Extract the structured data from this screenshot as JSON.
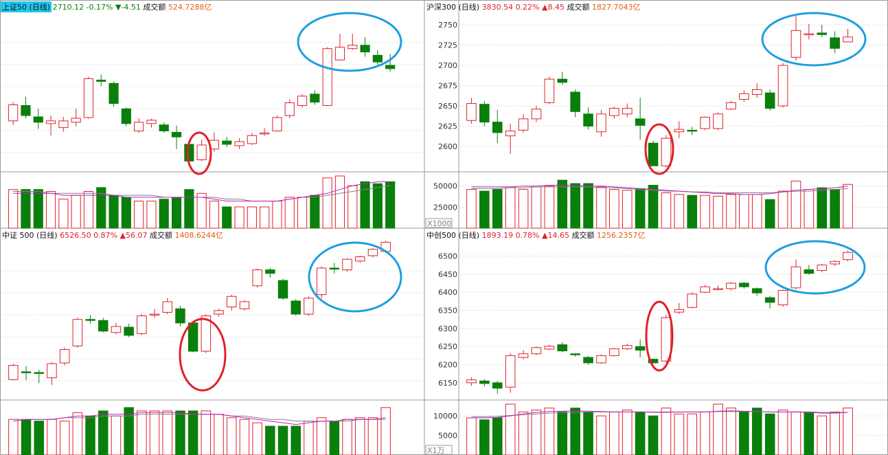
{
  "colors": {
    "up": "#e0202a",
    "down": "#0b7f0b",
    "frame": "#9a9a9a",
    "grid": "#c8c8c8",
    "ma1": "#c020c0",
    "ma2": "#808080",
    "highlight_bg": "#1ec8f0",
    "circle_blue": "#1d9ee0",
    "circle_red": "#e0202a",
    "vol_label": "#808080",
    "price_axis_label": "#333333"
  },
  "chart_data": [
    {
      "id": "sz50",
      "type": "candlestick",
      "header": {
        "name": "上证50 (日线)",
        "name_highlight": true,
        "price": "2710.12",
        "pct": "-0.17%",
        "change": "▼-4.51",
        "direction": "down",
        "turnover_label": "成交额",
        "turnover_value": "524.7288亿"
      },
      "price_ticks": [],
      "volume_ticks": [],
      "volume_unit": "",
      "ylim": [
        2560,
        2790
      ],
      "vol_max": 27,
      "candles": [
        [
          2632,
          2656,
          2660,
          2626
        ],
        [
          2655,
          2640,
          2668,
          2636
        ],
        [
          2638,
          2630,
          2650,
          2620
        ],
        [
          2628,
          2632,
          2640,
          2610
        ],
        [
          2622,
          2632,
          2638,
          2616
        ],
        [
          2630,
          2636,
          2650,
          2624
        ],
        [
          2637,
          2695,
          2698,
          2635
        ],
        [
          2693,
          2691,
          2701,
          2684
        ],
        [
          2688,
          2658,
          2691,
          2653
        ],
        [
          2650,
          2628,
          2652,
          2624
        ],
        [
          2617,
          2630,
          2636,
          2614
        ],
        [
          2628,
          2633,
          2635,
          2622
        ],
        [
          2626,
          2617,
          2630,
          2614
        ],
        [
          2615,
          2608,
          2625,
          2590
        ],
        [
          2597,
          2572,
          2597,
          2568
        ],
        [
          2574,
          2596,
          2604,
          2572
        ],
        [
          2590,
          2603,
          2615,
          2586
        ],
        [
          2602,
          2597,
          2608,
          2593
        ],
        [
          2595,
          2601,
          2606,
          2590
        ],
        [
          2598,
          2610,
          2614,
          2596
        ],
        [
          2614,
          2614,
          2621,
          2610
        ],
        [
          2617,
          2637,
          2640,
          2616
        ],
        [
          2640,
          2659,
          2664,
          2636
        ],
        [
          2655,
          2669,
          2672,
          2652
        ],
        [
          2672,
          2660,
          2678,
          2656
        ],
        [
          2655,
          2740,
          2742,
          2654
        ],
        [
          2723,
          2742,
          2762,
          2723
        ],
        [
          2740,
          2745,
          2762,
          2738
        ],
        [
          2745,
          2735,
          2757,
          2728
        ],
        [
          2730,
          2720,
          2738,
          2716
        ],
        [
          2715,
          2710,
          2732,
          2706
        ]
      ],
      "volumes": [
        20,
        20,
        20,
        19,
        15,
        17,
        19,
        21,
        17,
        16,
        14,
        14,
        15,
        16,
        20,
        18,
        14,
        11,
        11,
        11,
        11,
        14,
        16,
        16,
        17,
        26,
        27,
        22,
        24,
        23,
        24
      ],
      "ma_line": [
        18,
        18,
        18,
        18,
        17,
        17,
        17,
        17,
        17,
        16,
        16,
        16,
        16,
        16,
        16,
        16,
        15,
        14,
        14,
        14,
        14,
        14,
        15,
        16,
        17,
        18,
        20,
        22,
        23,
        24,
        24
      ],
      "ma_line2": [
        19,
        19,
        19,
        18,
        18,
        18,
        18,
        18,
        17,
        17,
        17,
        17,
        16,
        16,
        16,
        16,
        16,
        15,
        15,
        14,
        14,
        14,
        15,
        16,
        16,
        17,
        18,
        19,
        20,
        21,
        22
      ]
    },
    {
      "id": "hs300",
      "type": "candlestick",
      "header": {
        "name": "沪深300 (日线)",
        "name_highlight": false,
        "price": "3830.54",
        "pct": "0.22%",
        "change": "▲8.45",
        "direction": "up",
        "turnover_label": "成交额",
        "turnover_value": "1827.7043亿"
      },
      "price_ticks": [
        2600,
        2625,
        2650,
        2675,
        2700,
        2725,
        2750
      ],
      "volume_ticks": [
        25000,
        50000
      ],
      "volume_unit": "X1000",
      "ylim": [
        2572,
        2762
      ],
      "vol_max": 62000,
      "candles": [
        [
          2632,
          2653,
          2660,
          2628
        ],
        [
          2652,
          2630,
          2656,
          2625
        ],
        [
          2630,
          2617,
          2645,
          2604
        ],
        [
          2613,
          2619,
          2628,
          2591
        ],
        [
          2620,
          2634,
          2640,
          2617
        ],
        [
          2634,
          2646,
          2650,
          2630
        ],
        [
          2654,
          2683,
          2686,
          2652
        ],
        [
          2683,
          2679,
          2692,
          2676
        ],
        [
          2667,
          2643,
          2670,
          2636
        ],
        [
          2640,
          2625,
          2648,
          2621
        ],
        [
          2618,
          2640,
          2645,
          2612
        ],
        [
          2638,
          2647,
          2649,
          2634
        ],
        [
          2640,
          2647,
          2653,
          2636
        ],
        [
          2634,
          2626,
          2660,
          2608
        ],
        [
          2604,
          2576,
          2607,
          2576
        ],
        [
          2576,
          2610,
          2614,
          2574
        ],
        [
          2618,
          2621,
          2631,
          2610
        ],
        [
          2620,
          2619,
          2624,
          2614
        ],
        [
          2622,
          2636,
          2637,
          2620
        ],
        [
          2622,
          2640,
          2642,
          2620
        ],
        [
          2646,
          2654,
          2656,
          2645
        ],
        [
          2658,
          2665,
          2669,
          2655
        ],
        [
          2664,
          2670,
          2678,
          2660
        ],
        [
          2666,
          2647,
          2670,
          2644
        ],
        [
          2650,
          2700,
          2703,
          2648
        ],
        [
          2710,
          2743,
          2762,
          2706
        ],
        [
          2738,
          2739,
          2751,
          2732
        ],
        [
          2740,
          2738,
          2750,
          2735
        ],
        [
          2734,
          2721,
          2742,
          2715
        ],
        [
          2729,
          2735,
          2745,
          2729
        ]
      ],
      "volumes": [
        46000,
        44000,
        46000,
        49000,
        46000,
        49000,
        50000,
        57000,
        53000,
        53000,
        49000,
        46000,
        45000,
        47000,
        51000,
        42000,
        40000,
        39000,
        39000,
        38000,
        40000,
        40000,
        40000,
        34000,
        44000,
        56000,
        46000,
        48000,
        46000,
        52000
      ],
      "ma_line": [
        49000,
        49000,
        49000,
        49000,
        50000,
        50000,
        51000,
        51000,
        51000,
        50000,
        50000,
        49000,
        48000,
        47000,
        46000,
        45000,
        44000,
        43000,
        42000,
        41000,
        41000,
        40000,
        40000,
        41000,
        43000,
        45000,
        46000,
        47000,
        48000,
        50000
      ],
      "ma_line2": [
        47000,
        47000,
        47000,
        48000,
        48000,
        49000,
        49000,
        49000,
        49000,
        49000,
        48000,
        48000,
        47000,
        46000,
        45000,
        44000,
        44000,
        43000,
        43000,
        42000,
        42000,
        42000,
        42000,
        42000,
        43000,
        44000,
        44000,
        45000,
        46000,
        47000
      ]
    },
    {
      "id": "zz500",
      "type": "candlestick",
      "header": {
        "name": "中证 500 (日线)",
        "name_highlight": false,
        "price": "6526.50",
        "pct": "0.87%",
        "change": "▲56.07",
        "direction": "up",
        "turnover_label": "成交额",
        "turnover_value": "1408.6244亿"
      },
      "price_ticks": [],
      "volume_ticks": [],
      "volume_unit": "",
      "ylim": [
        6110,
        6545
      ],
      "vol_max": 30,
      "candles": [
        [
          6160,
          6200,
          6205,
          6158
        ],
        [
          6182,
          6180,
          6198,
          6158
        ],
        [
          6180,
          6178,
          6188,
          6150
        ],
        [
          6165,
          6205,
          6210,
          6145
        ],
        [
          6207,
          6245,
          6250,
          6200
        ],
        [
          6255,
          6330,
          6335,
          6250
        ],
        [
          6330,
          6327,
          6342,
          6318
        ],
        [
          6327,
          6297,
          6334,
          6293
        ],
        [
          6293,
          6310,
          6320,
          6288
        ],
        [
          6308,
          6285,
          6318,
          6280
        ],
        [
          6290,
          6340,
          6345,
          6285
        ],
        [
          6342,
          6345,
          6360,
          6335
        ],
        [
          6350,
          6380,
          6390,
          6345
        ],
        [
          6360,
          6320,
          6368,
          6310
        ],
        [
          6320,
          6240,
          6325,
          6237
        ],
        [
          6240,
          6340,
          6345,
          6235
        ],
        [
          6345,
          6355,
          6360,
          6338
        ],
        [
          6365,
          6395,
          6400,
          6355
        ],
        [
          6360,
          6380,
          6385,
          6355
        ],
        [
          6425,
          6470,
          6474,
          6420
        ],
        [
          6470,
          6460,
          6475,
          6448
        ],
        [
          6440,
          6390,
          6445,
          6385
        ],
        [
          6382,
          6345,
          6388,
          6340
        ],
        [
          6345,
          6390,
          6395,
          6340
        ],
        [
          6400,
          6475,
          6480,
          6390
        ],
        [
          6475,
          6472,
          6490,
          6460
        ],
        [
          6470,
          6500,
          6503,
          6465
        ],
        [
          6495,
          6507,
          6510,
          6490
        ],
        [
          6510,
          6528,
          6532,
          6505
        ],
        [
          6522,
          6548,
          6552,
          6518
        ]
      ],
      "volumes": [
        21,
        21,
        20,
        21,
        20,
        25,
        23,
        26,
        23,
        28,
        26,
        26,
        26,
        26,
        26,
        26,
        24,
        22,
        21,
        19,
        17,
        17,
        17,
        20,
        22,
        20,
        21,
        22,
        22,
        28
      ],
      "ma_line": [
        20,
        21,
        21,
        21,
        22,
        23,
        23,
        24,
        24,
        24,
        25,
        25,
        25,
        25,
        24,
        24,
        24,
        23,
        22,
        21,
        20,
        19,
        18,
        19,
        20,
        20,
        21,
        21,
        21,
        22
      ],
      "ma_line2": [
        21,
        21,
        21,
        21,
        22,
        22,
        22,
        23,
        23,
        23,
        24,
        24,
        24,
        24,
        24,
        24,
        24,
        23,
        23,
        22,
        21,
        21,
        20,
        20,
        20,
        20,
        20,
        21,
        21,
        21
      ]
    },
    {
      "id": "zc500",
      "type": "candlestick",
      "header": {
        "name": "中创500 (日线)",
        "name_highlight": false,
        "price": "1893.19",
        "pct": "0.78%",
        "change": "▲14.65",
        "direction": "up",
        "turnover_label": "成交额",
        "turnover_value": "1256.2357亿"
      },
      "price_ticks": [
        6150,
        6200,
        6250,
        6300,
        6350,
        6400,
        6450,
        6500
      ],
      "volume_ticks": [
        5000,
        10000
      ],
      "volume_unit": "X1万",
      "ylim": [
        6110,
        6535
      ],
      "vol_max": 13000,
      "candles": [
        [
          6150,
          6158,
          6165,
          6142
        ],
        [
          6155,
          6148,
          6160,
          6140
        ],
        [
          6150,
          6135,
          6155,
          6120
        ],
        [
          6138,
          6225,
          6232,
          6122
        ],
        [
          6220,
          6230,
          6240,
          6215
        ],
        [
          6230,
          6247,
          6250,
          6226
        ],
        [
          6243,
          6251,
          6255,
          6240
        ],
        [
          6255,
          6238,
          6262,
          6234
        ],
        [
          6230,
          6228,
          6232,
          6222
        ],
        [
          6220,
          6205,
          6224,
          6200
        ],
        [
          6205,
          6225,
          6228,
          6202
        ],
        [
          6225,
          6244,
          6246,
          6223
        ],
        [
          6244,
          6253,
          6258,
          6240
        ],
        [
          6250,
          6240,
          6270,
          6220
        ],
        [
          6215,
          6205,
          6217,
          6203
        ],
        [
          6210,
          6330,
          6338,
          6205
        ],
        [
          6345,
          6352,
          6370,
          6340
        ],
        [
          6358,
          6395,
          6400,
          6355
        ],
        [
          6400,
          6415,
          6420,
          6398
        ],
        [
          6410,
          6410,
          6418,
          6405
        ],
        [
          6410,
          6425,
          6428,
          6405
        ],
        [
          6425,
          6415,
          6428,
          6410
        ],
        [
          6410,
          6398,
          6413,
          6390
        ],
        [
          6385,
          6372,
          6390,
          6355
        ],
        [
          6365,
          6405,
          6408,
          6360
        ],
        [
          6412,
          6470,
          6490,
          6408
        ],
        [
          6462,
          6452,
          6475,
          6448
        ],
        [
          6460,
          6475,
          6478,
          6455
        ],
        [
          6478,
          6485,
          6488,
          6472
        ],
        [
          6490,
          6510,
          6515,
          6485
        ]
      ],
      "volumes": [
        9500,
        9000,
        9500,
        13000,
        11000,
        11500,
        12000,
        11000,
        12000,
        11000,
        10000,
        11000,
        11500,
        11000,
        10000,
        12000,
        10500,
        10500,
        11000,
        13000,
        12000,
        11000,
        12000,
        10500,
        11500,
        11000,
        11000,
        10000,
        11000,
        12000
      ],
      "ma_line": [
        9500,
        9500,
        9600,
        10000,
        10500,
        10900,
        11100,
        11200,
        11300,
        11200,
        11100,
        11000,
        11000,
        11000,
        10900,
        10900,
        11000,
        11000,
        11000,
        11200,
        11300,
        11200,
        11100,
        11000,
        11000,
        11000,
        10900,
        10700,
        10700,
        10900
      ],
      "ma_line2": [
        9800,
        9800,
        9900,
        10100,
        10300,
        10500,
        10700,
        10800,
        10900,
        11000,
        11000,
        11000,
        11000,
        11000,
        11000,
        11000,
        11000,
        11000,
        11000,
        11100,
        11100,
        11100,
        11100,
        11000,
        11000,
        11000,
        11000,
        10900,
        10900,
        10900
      ]
    }
  ]
}
